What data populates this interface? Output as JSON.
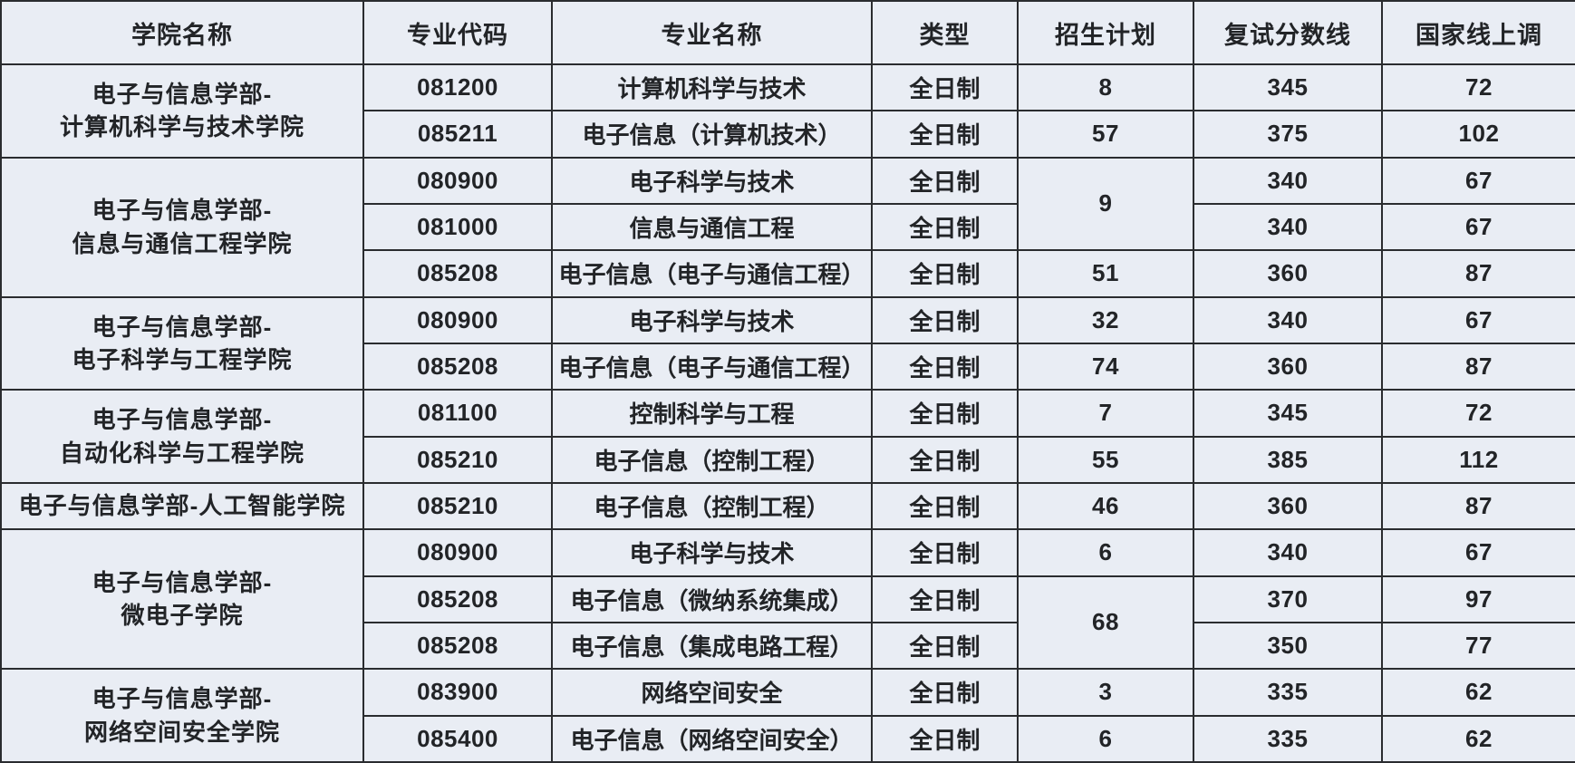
{
  "colors": {
    "background": "#e9edf4",
    "border": "#2a2c2f",
    "text": "#222427"
  },
  "table": {
    "columns": [
      {
        "key": "college",
        "label": "学院名称"
      },
      {
        "key": "code",
        "label": "专业代码"
      },
      {
        "key": "major",
        "label": "专业名称"
      },
      {
        "key": "type",
        "label": "类型"
      },
      {
        "key": "plan",
        "label": "招生计划"
      },
      {
        "key": "score",
        "label": "复试分数线"
      },
      {
        "key": "above",
        "label": "国家线上调"
      }
    ],
    "groups": [
      {
        "college": "电子与信息学部-\n计算机科学与技术学院",
        "rows": [
          {
            "code": "081200",
            "major": "计算机科学与技术",
            "type": "全日制",
            "plan": "8",
            "score": "345",
            "above": "72"
          },
          {
            "code": "085211",
            "major": "电子信息（计算机技术）",
            "type": "全日制",
            "plan": "57",
            "score": "375",
            "above": "102"
          }
        ]
      },
      {
        "college": "电子与信息学部-\n信息与通信工程学院",
        "rows": [
          {
            "code": "080900",
            "major": "电子科学与技术",
            "type": "全日制",
            "plan": "9",
            "plan_rowspan": 2,
            "score": "340",
            "above": "67"
          },
          {
            "code": "081000",
            "major": "信息与通信工程",
            "type": "全日制",
            "plan": null,
            "score": "340",
            "above": "67"
          },
          {
            "code": "085208",
            "major": "电子信息（电子与通信工程）",
            "type": "全日制",
            "plan": "51",
            "score": "360",
            "above": "87"
          }
        ]
      },
      {
        "college": "电子与信息学部-\n电子科学与工程学院",
        "rows": [
          {
            "code": "080900",
            "major": "电子科学与技术",
            "type": "全日制",
            "plan": "32",
            "score": "340",
            "above": "67"
          },
          {
            "code": "085208",
            "major": "电子信息（电子与通信工程）",
            "type": "全日制",
            "plan": "74",
            "score": "360",
            "above": "87"
          }
        ]
      },
      {
        "college": "电子与信息学部-\n自动化科学与工程学院",
        "rows": [
          {
            "code": "081100",
            "major": "控制科学与工程",
            "type": "全日制",
            "plan": "7",
            "score": "345",
            "above": "72"
          },
          {
            "code": "085210",
            "major": "电子信息（控制工程）",
            "type": "全日制",
            "plan": "55",
            "score": "385",
            "above": "112"
          }
        ]
      },
      {
        "college": "电子与信息学部-人工智能学院",
        "rows": [
          {
            "code": "085210",
            "major": "电子信息（控制工程）",
            "type": "全日制",
            "plan": "46",
            "score": "360",
            "above": "87"
          }
        ]
      },
      {
        "college": "电子与信息学部-\n微电子学院",
        "rows": [
          {
            "code": "080900",
            "major": "电子科学与技术",
            "type": "全日制",
            "plan": "6",
            "score": "340",
            "above": "67"
          },
          {
            "code": "085208",
            "major": "电子信息（微纳系统集成）",
            "type": "全日制",
            "plan": "68",
            "plan_rowspan": 2,
            "score": "370",
            "above": "97"
          },
          {
            "code": "085208",
            "major": "电子信息（集成电路工程）",
            "type": "全日制",
            "plan": null,
            "score": "350",
            "above": "77"
          }
        ]
      },
      {
        "college": "电子与信息学部-\n网络空间安全学院",
        "rows": [
          {
            "code": "083900",
            "major": "网络空间安全",
            "type": "全日制",
            "plan": "3",
            "score": "335",
            "above": "62"
          },
          {
            "code": "085400",
            "major": "电子信息（网络空间安全）",
            "type": "全日制",
            "plan": "6",
            "score": "335",
            "above": "62"
          }
        ]
      }
    ]
  }
}
